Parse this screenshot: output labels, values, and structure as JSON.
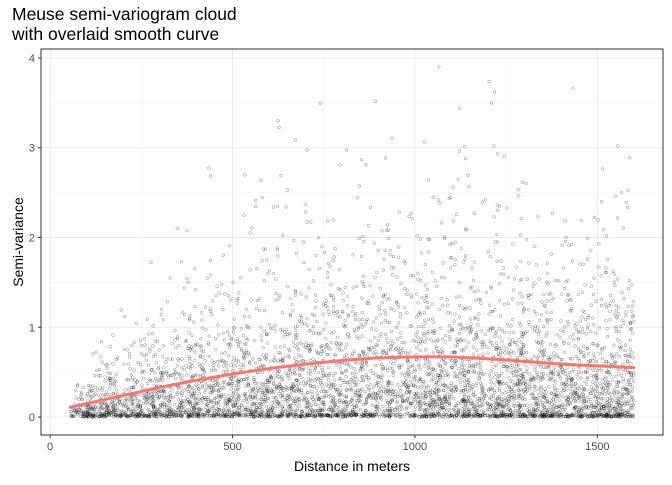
{
  "chart_data": {
    "type": "scatter",
    "title": [
      "Meuse semi-variogram cloud",
      "with overlaid smooth curve"
    ],
    "xlabel": "Distance in meters",
    "ylabel": "Semi-variance",
    "xlim": [
      -25,
      1680
    ],
    "ylim": [
      -0.2,
      4.1
    ],
    "x_ticks": [
      0,
      500,
      1000,
      1500
    ],
    "y_ticks": [
      0,
      1,
      2,
      3,
      4
    ],
    "grid": true,
    "legend": "none",
    "point_style": {
      "shape": "open-circle",
      "color": "#000000",
      "opacity": 0.45
    },
    "points": {
      "count": 5000,
      "x_range": [
        55,
        1600
      ],
      "note": "variogram cloud; dense band near 0, values spread up to about 3.9"
    },
    "smooth_curve": {
      "color": "#F8766D",
      "x": [
        55,
        100,
        200,
        300,
        400,
        500,
        600,
        700,
        800,
        900,
        1000,
        1100,
        1200,
        1300,
        1400,
        1500,
        1600
      ],
      "y": [
        0.11,
        0.15,
        0.24,
        0.33,
        0.41,
        0.48,
        0.54,
        0.59,
        0.63,
        0.66,
        0.67,
        0.67,
        0.65,
        0.62,
        0.59,
        0.57,
        0.55
      ]
    }
  }
}
